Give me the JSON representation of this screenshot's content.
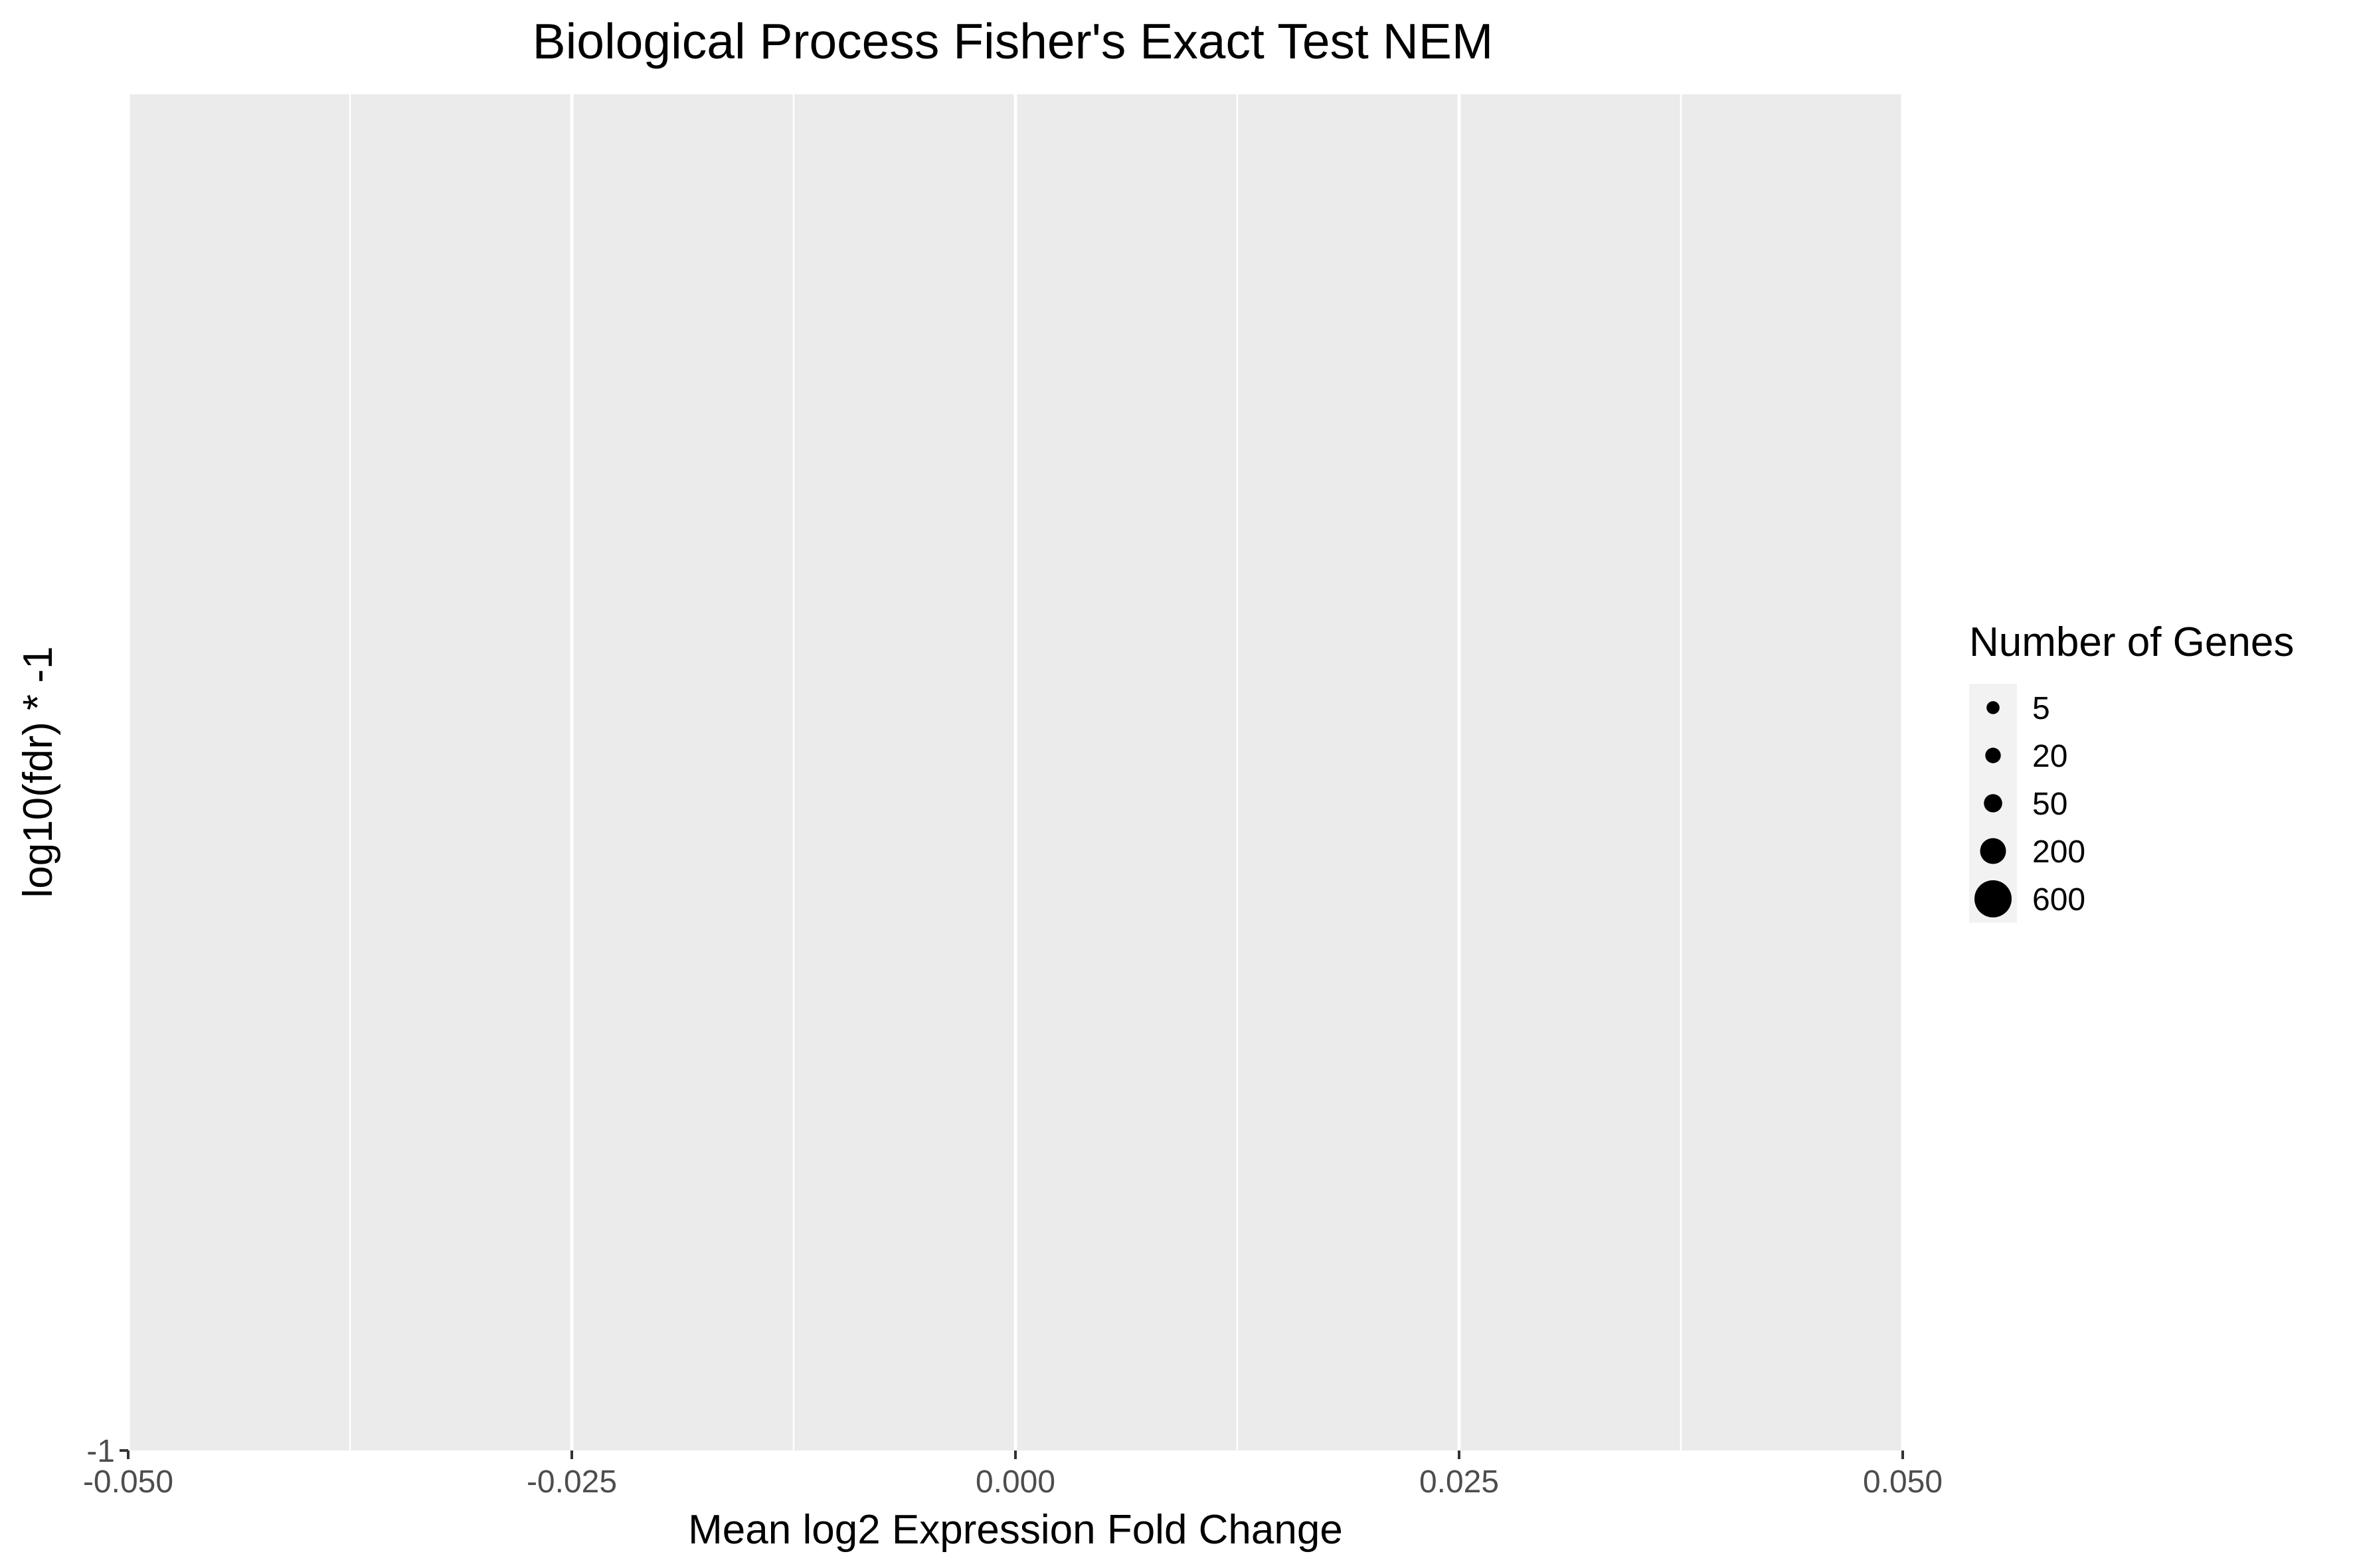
{
  "chart_data": {
    "type": "scatter",
    "title": "Biological Process Fisher's Exact Test NEM",
    "xlabel": "Mean log2 Expression Fold Change",
    "ylabel": "log10(fdr) * -1",
    "xlim": [
      -0.05,
      0.05
    ],
    "x_ticks": [
      -0.05,
      -0.025,
      0,
      0.025,
      0.05
    ],
    "x_tick_labels": [
      "-0.050",
      "-0.025",
      "0.000",
      "0.025",
      "0.050"
    ],
    "y_ticks": [
      -1
    ],
    "y_tick_labels": [
      "-1"
    ],
    "grid": true,
    "points": [],
    "legend": {
      "title": "Number of Genes",
      "position": "right",
      "entries": [
        {
          "label": "5",
          "value": 5
        },
        {
          "label": "20",
          "value": 20
        },
        {
          "label": "50",
          "value": 50
        },
        {
          "label": "200",
          "value": 200
        },
        {
          "label": "600",
          "value": 600
        }
      ]
    },
    "colors": {
      "panel": "#ebebeb",
      "grid": "#ffffff",
      "point": "#000000",
      "legend_key": "#f2f2f2"
    }
  }
}
